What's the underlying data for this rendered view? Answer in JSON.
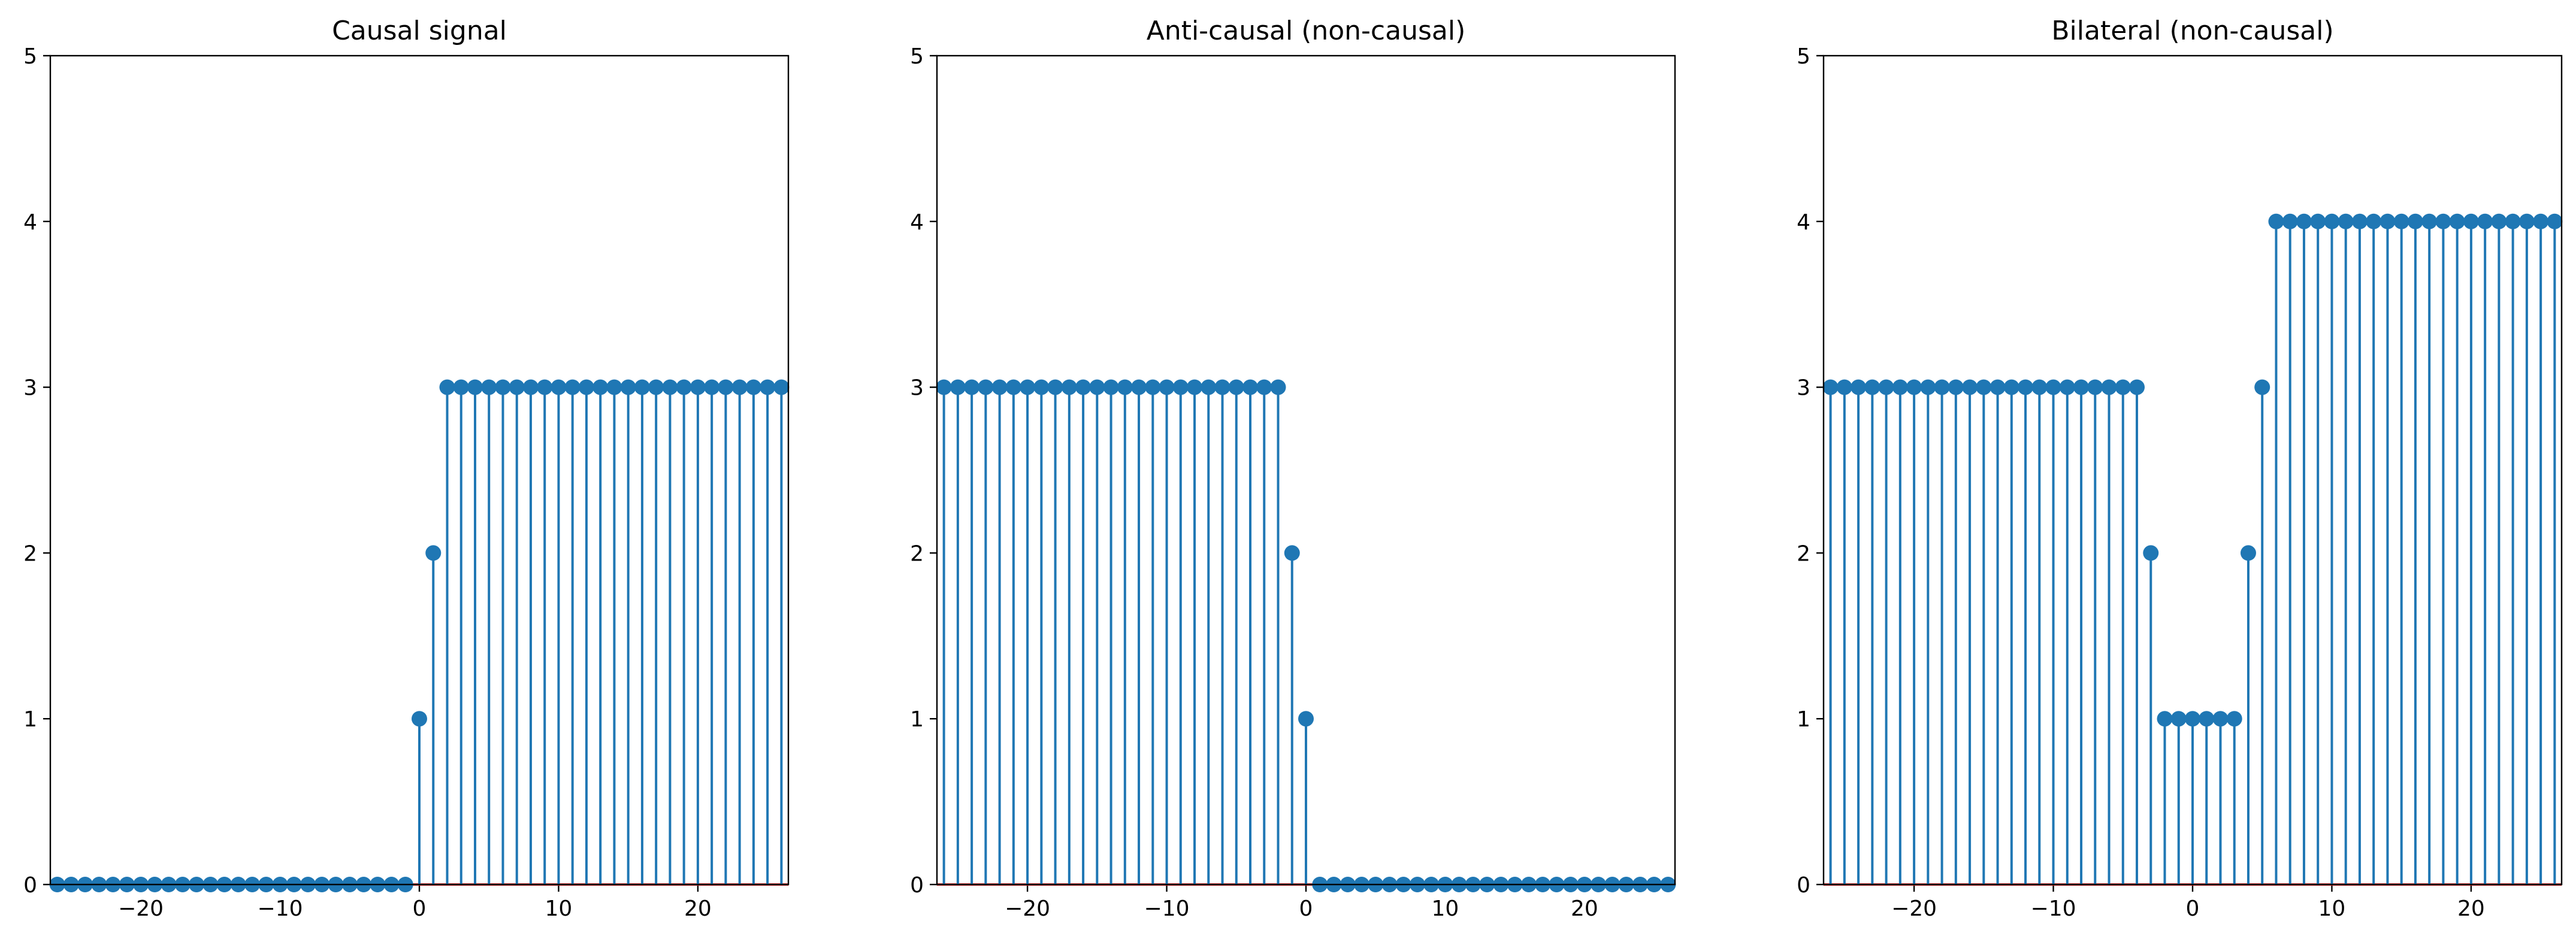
{
  "chart_data": [
    {
      "type": "stem",
      "title": "Causal signal",
      "xlim": [
        -26.5,
        26.5
      ],
      "ylim": [
        0,
        5
      ],
      "xticks": [
        -20,
        -10,
        0,
        10,
        20
      ],
      "xtick_labels": [
        "−20",
        "−10",
        "0",
        "10",
        "20"
      ],
      "yticks": [
        0,
        1,
        2,
        3,
        4,
        5
      ],
      "ytick_labels": [
        "0",
        "1",
        "2",
        "3",
        "4",
        "5"
      ],
      "x": [
        -26,
        -25,
        -24,
        -23,
        -22,
        -21,
        -20,
        -19,
        -18,
        -17,
        -16,
        -15,
        -14,
        -13,
        -12,
        -11,
        -10,
        -9,
        -8,
        -7,
        -6,
        -5,
        -4,
        -3,
        -2,
        -1,
        0,
        1,
        2,
        3,
        4,
        5,
        6,
        7,
        8,
        9,
        10,
        11,
        12,
        13,
        14,
        15,
        16,
        17,
        18,
        19,
        20,
        21,
        22,
        23,
        24,
        25,
        26
      ],
      "y": [
        0,
        0,
        0,
        0,
        0,
        0,
        0,
        0,
        0,
        0,
        0,
        0,
        0,
        0,
        0,
        0,
        0,
        0,
        0,
        0,
        0,
        0,
        0,
        0,
        0,
        0,
        1,
        2,
        3,
        3,
        3,
        3,
        3,
        3,
        3,
        3,
        3,
        3,
        3,
        3,
        3,
        3,
        3,
        3,
        3,
        3,
        3,
        3,
        3,
        3,
        3,
        3,
        3
      ]
    },
    {
      "type": "stem",
      "title": "Anti-causal (non-causal)",
      "xlim": [
        -26.5,
        26.5
      ],
      "ylim": [
        0,
        5
      ],
      "xticks": [
        -20,
        -10,
        0,
        10,
        20
      ],
      "xtick_labels": [
        "−20",
        "−10",
        "0",
        "10",
        "20"
      ],
      "yticks": [
        0,
        1,
        2,
        3,
        4,
        5
      ],
      "ytick_labels": [
        "0",
        "1",
        "2",
        "3",
        "4",
        "5"
      ],
      "x": [
        -26,
        -25,
        -24,
        -23,
        -22,
        -21,
        -20,
        -19,
        -18,
        -17,
        -16,
        -15,
        -14,
        -13,
        -12,
        -11,
        -10,
        -9,
        -8,
        -7,
        -6,
        -5,
        -4,
        -3,
        -2,
        -1,
        0,
        1,
        2,
        3,
        4,
        5,
        6,
        7,
        8,
        9,
        10,
        11,
        12,
        13,
        14,
        15,
        16,
        17,
        18,
        19,
        20,
        21,
        22,
        23,
        24,
        25,
        26
      ],
      "y": [
        3,
        3,
        3,
        3,
        3,
        3,
        3,
        3,
        3,
        3,
        3,
        3,
        3,
        3,
        3,
        3,
        3,
        3,
        3,
        3,
        3,
        3,
        3,
        3,
        3,
        2,
        1,
        0,
        0,
        0,
        0,
        0,
        0,
        0,
        0,
        0,
        0,
        0,
        0,
        0,
        0,
        0,
        0,
        0,
        0,
        0,
        0,
        0,
        0,
        0,
        0,
        0,
        0
      ]
    },
    {
      "type": "stem",
      "title": "Bilateral (non-causal)",
      "xlim": [
        -26.5,
        26.5
      ],
      "ylim": [
        0,
        5
      ],
      "xticks": [
        -20,
        -10,
        0,
        10,
        20
      ],
      "xtick_labels": [
        "−20",
        "−10",
        "0",
        "10",
        "20"
      ],
      "yticks": [
        0,
        1,
        2,
        3,
        4,
        5
      ],
      "ytick_labels": [
        "0",
        "1",
        "2",
        "3",
        "4",
        "5"
      ],
      "x": [
        -26,
        -25,
        -24,
        -23,
        -22,
        -21,
        -20,
        -19,
        -18,
        -17,
        -16,
        -15,
        -14,
        -13,
        -12,
        -11,
        -10,
        -9,
        -8,
        -7,
        -6,
        -5,
        -4,
        -3,
        -2,
        -1,
        0,
        1,
        2,
        3,
        4,
        5,
        6,
        7,
        8,
        9,
        10,
        11,
        12,
        13,
        14,
        15,
        16,
        17,
        18,
        19,
        20,
        21,
        22,
        23,
        24,
        25,
        26
      ],
      "y": [
        3,
        3,
        3,
        3,
        3,
        3,
        3,
        3,
        3,
        3,
        3,
        3,
        3,
        3,
        3,
        3,
        3,
        3,
        3,
        3,
        3,
        3,
        3,
        2,
        1,
        1,
        1,
        1,
        1,
        1,
        2,
        3,
        4,
        4,
        4,
        4,
        4,
        4,
        4,
        4,
        4,
        4,
        4,
        4,
        4,
        4,
        4,
        4,
        4,
        4,
        4,
        4,
        4
      ]
    }
  ],
  "colors": {
    "stem": "#1f77b4",
    "baseline": "#d62728"
  }
}
